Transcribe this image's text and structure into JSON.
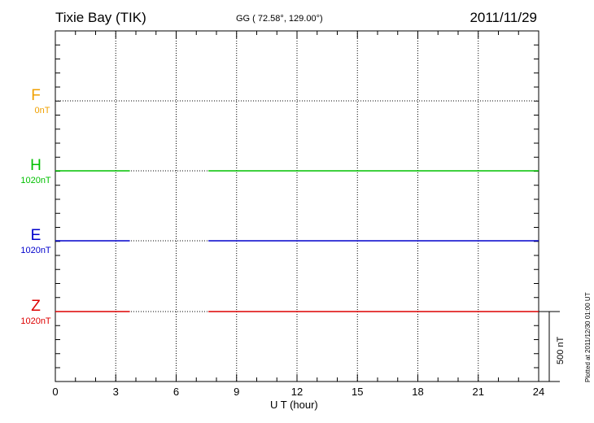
{
  "header": {
    "station": "Tixie Bay (TIK)",
    "coords": "GG ( 72.58°, 129.00°)",
    "date": "2011/11/29"
  },
  "chart_data": {
    "type": "line",
    "xlabel": "U T (hour)",
    "xlim": [
      0,
      24
    ],
    "xticks": [
      "0",
      "3",
      "6",
      "9",
      "12",
      "15",
      "18",
      "21",
      "24"
    ],
    "grid": true,
    "scale_bar": "500 nT",
    "series": [
      {
        "name": "F",
        "baseline": "0nT",
        "color": "#f0a000",
        "segments": []
      },
      {
        "name": "H",
        "baseline": "1020nT",
        "color": "#00c000",
        "segments": [
          [
            0,
            3.7
          ],
          [
            7.6,
            24
          ]
        ]
      },
      {
        "name": "E",
        "baseline": "1020nT",
        "color": "#0000cc",
        "segments": [
          [
            0,
            3.7
          ],
          [
            7.6,
            24
          ]
        ]
      },
      {
        "name": "Z",
        "baseline": "1020nT",
        "color": "#dd0000",
        "segments": [
          [
            0,
            3.7
          ],
          [
            7.6,
            24
          ]
        ]
      }
    ]
  },
  "footer": {
    "plotted": "Plotted at 2011/12/30 01:00 UT"
  }
}
